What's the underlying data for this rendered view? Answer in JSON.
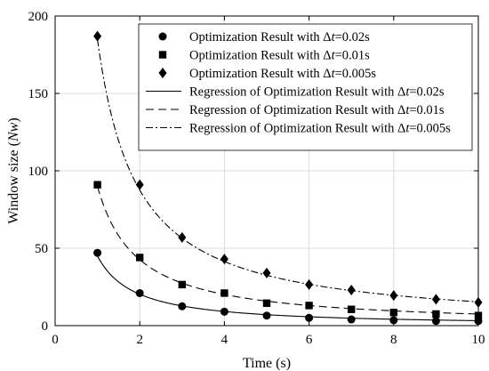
{
  "chart_data": {
    "type": "scatter",
    "title": "",
    "xlabel": "Time (s)",
    "ylabel_prefix": "Window size (",
    "ylabel_italic": "Nw",
    "ylabel_suffix": ")",
    "xlim": [
      0,
      10
    ],
    "ylim": [
      0,
      200
    ],
    "xticks": [
      0,
      2,
      4,
      6,
      8,
      10
    ],
    "yticks": [
      0,
      50,
      100,
      150,
      200
    ],
    "grid": true,
    "legend_position": "top-right",
    "x": [
      1,
      2,
      3,
      4,
      5,
      6,
      7,
      8,
      9,
      10
    ],
    "series": [
      {
        "name_pre": "Optimization Result with ",
        "name_delta": "Δ",
        "name_var": "t",
        "name_post": "=0.02s",
        "kind": "marker",
        "marker": "circle",
        "values": [
          47,
          21,
          12.5,
          9,
          6.5,
          5,
          4,
          3.5,
          3,
          3
        ]
      },
      {
        "name_pre": "Optimization Result with ",
        "name_delta": "Δ",
        "name_var": "t",
        "name_post": "=0.01s",
        "kind": "marker",
        "marker": "square",
        "values": [
          91,
          44,
          26.5,
          21,
          14.5,
          13,
          10.5,
          8.5,
          7.5,
          6.5
        ]
      },
      {
        "name_pre": "Optimization Result with ",
        "name_delta": "Δ",
        "name_var": "t",
        "name_post": "=0.005s",
        "kind": "marker",
        "marker": "diamond",
        "values": [
          187,
          91,
          57,
          43,
          34,
          26.5,
          23,
          19.5,
          17,
          15
        ]
      },
      {
        "name_pre": "Regression of Optimization Result with ",
        "name_delta": "Δ",
        "name_var": "t",
        "name_post": "=0.02s",
        "kind": "line",
        "dash": "solid",
        "fit_scale": 45,
        "fit_exponent": 1.15,
        "x_range": [
          1,
          10
        ]
      },
      {
        "name_pre": "Regression of Optimization Result with ",
        "name_delta": "Δ",
        "name_var": "t",
        "name_post": "=0.01s",
        "kind": "line",
        "dash": "dashed",
        "fit_scale": 90,
        "fit_exponent": 1.08,
        "x_range": [
          1,
          10
        ]
      },
      {
        "name_pre": "Regression of Optimization Result with ",
        "name_delta": "Δ",
        "name_var": "t",
        "name_post": "=0.005s",
        "kind": "line",
        "dash": "dashdot",
        "fit_scale": 185,
        "fit_exponent": 1.08,
        "x_range": [
          1,
          10
        ]
      }
    ]
  }
}
